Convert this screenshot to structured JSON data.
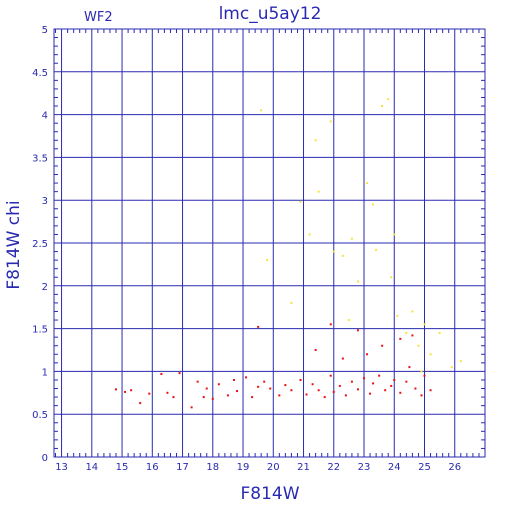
{
  "chart_data": {
    "type": "scatter",
    "title": "lmc_u5ay12",
    "panel_label": "WF2",
    "xlabel": "F814W",
    "ylabel": "F814W chi",
    "xlim": [
      12.75,
      27
    ],
    "ylim": [
      0,
      5
    ],
    "xticks": [
      "13",
      "14",
      "15",
      "16",
      "17",
      "18",
      "19",
      "20",
      "21",
      "22",
      "23",
      "24",
      "25",
      "26"
    ],
    "yticks": [
      "0",
      "0.5",
      "1",
      "1.5",
      "2",
      "2.5",
      "3",
      "3.5",
      "4",
      "4.5",
      "5"
    ],
    "grid": true,
    "colors": {
      "axis": "#2a2ab0",
      "grid": "#2a2ab0",
      "red": "#e81010",
      "yellow": "#f5e43a"
    },
    "series": [
      {
        "color": "red",
        "x": [
          14.8,
          15.1,
          15.3,
          15.6,
          15.9,
          16.3,
          16.5,
          16.7,
          16.9,
          17.3,
          17.5,
          17.7,
          17.8,
          18.0,
          18.2,
          18.5,
          18.7,
          18.8,
          19.1,
          19.3,
          19.5,
          19.7,
          19.9,
          20.2,
          20.4,
          20.6,
          20.9,
          21.1,
          21.3,
          21.5,
          21.7,
          21.9,
          22.0,
          22.2,
          22.4,
          22.6,
          22.8,
          23.0,
          23.2,
          23.3,
          23.5,
          23.7,
          23.9,
          24.0,
          24.2,
          24.4,
          24.5,
          24.7,
          24.9,
          25.0,
          25.2,
          19.5,
          21.9,
          21.4,
          22.8,
          23.6,
          24.2,
          22.3,
          23.1,
          24.6
        ],
        "y": [
          0.79,
          0.76,
          0.78,
          0.63,
          0.74,
          0.97,
          0.75,
          0.7,
          0.98,
          0.58,
          0.88,
          0.7,
          0.8,
          0.68,
          0.85,
          0.72,
          0.9,
          0.77,
          0.93,
          0.7,
          0.82,
          0.88,
          0.8,
          0.72,
          0.84,
          0.78,
          0.9,
          0.73,
          0.85,
          0.78,
          0.7,
          0.95,
          0.76,
          0.83,
          0.72,
          0.88,
          0.79,
          0.92,
          0.74,
          0.86,
          0.95,
          0.78,
          0.83,
          0.9,
          0.75,
          0.88,
          1.05,
          0.8,
          0.72,
          0.95,
          0.78,
          1.52,
          1.55,
          1.25,
          1.48,
          1.3,
          1.38,
          1.15,
          1.2,
          1.42
        ]
      },
      {
        "color": "yellow",
        "x": [
          19.6,
          19.8,
          20.9,
          21.4,
          21.5,
          21.9,
          22.0,
          22.3,
          22.6,
          22.8,
          23.1,
          23.3,
          23.4,
          23.6,
          23.8,
          24.0,
          24.1,
          24.4,
          24.6,
          24.8,
          25.0,
          25.2,
          25.5,
          25.9,
          26.2,
          20.6,
          22.5,
          23.9,
          24.9,
          21.2
        ],
        "y": [
          4.05,
          2.3,
          2.98,
          3.7,
          3.1,
          3.92,
          2.4,
          2.35,
          2.55,
          2.05,
          3.2,
          2.95,
          2.42,
          4.1,
          4.18,
          2.6,
          1.65,
          1.45,
          1.7,
          1.3,
          1.55,
          1.2,
          1.45,
          1.05,
          1.12,
          1.8,
          1.6,
          2.1,
          1.0,
          2.6
        ]
      }
    ]
  }
}
